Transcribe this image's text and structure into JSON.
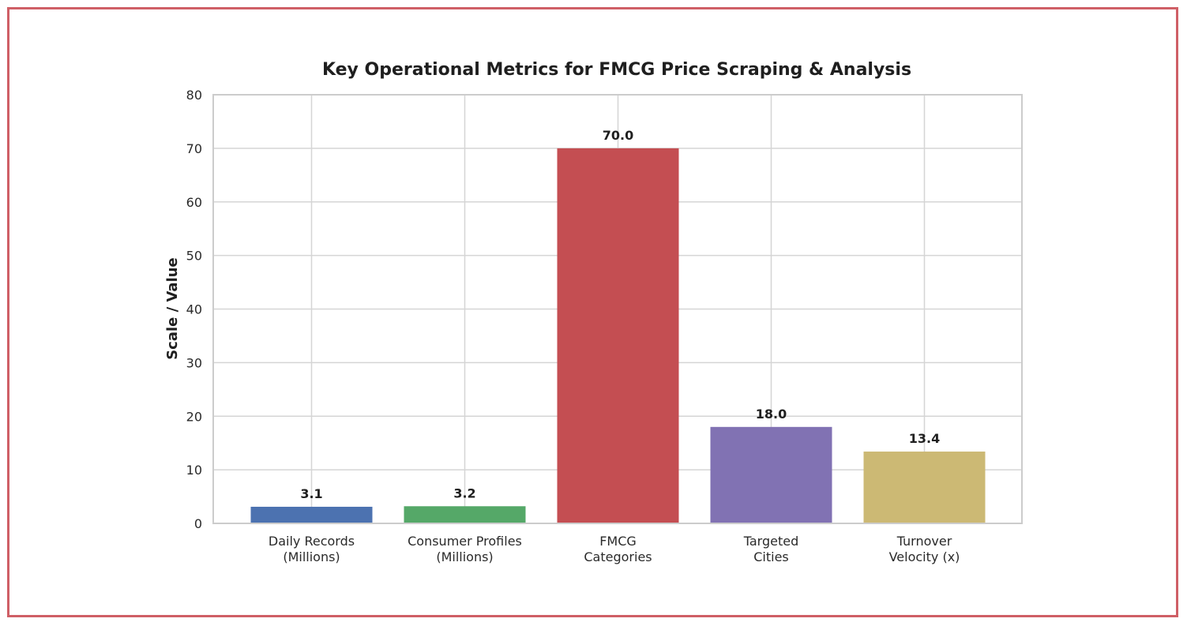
{
  "chart_data": {
    "type": "bar",
    "title": "Key Operational Metrics for FMCG Price Scraping & Analysis",
    "xlabel": "",
    "ylabel": "Scale / Value",
    "ylim": [
      0,
      80
    ],
    "yticks": [
      0,
      10,
      20,
      30,
      40,
      50,
      60,
      70,
      80
    ],
    "categories": [
      [
        "Daily Records",
        "(Millions)"
      ],
      [
        "Consumer Profiles",
        "(Millions)"
      ],
      [
        "FMCG",
        "Categories"
      ],
      [
        "Targeted",
        "Cities"
      ],
      [
        "Turnover",
        "Velocity (x)"
      ]
    ],
    "values": [
      3.1,
      3.2,
      70.0,
      18.0,
      13.4
    ],
    "data_labels": [
      "3.1",
      "3.2",
      "70.0",
      "18.0",
      "13.4"
    ],
    "colors": [
      "#4c72b0",
      "#55a868",
      "#c44e52",
      "#8172b3",
      "#ccb974"
    ],
    "grid": true,
    "legend": "none"
  },
  "theme": {
    "frame_border": "#cf5f66",
    "grid_color": "#d5d5d5",
    "axes_edge": "#cccccc"
  }
}
